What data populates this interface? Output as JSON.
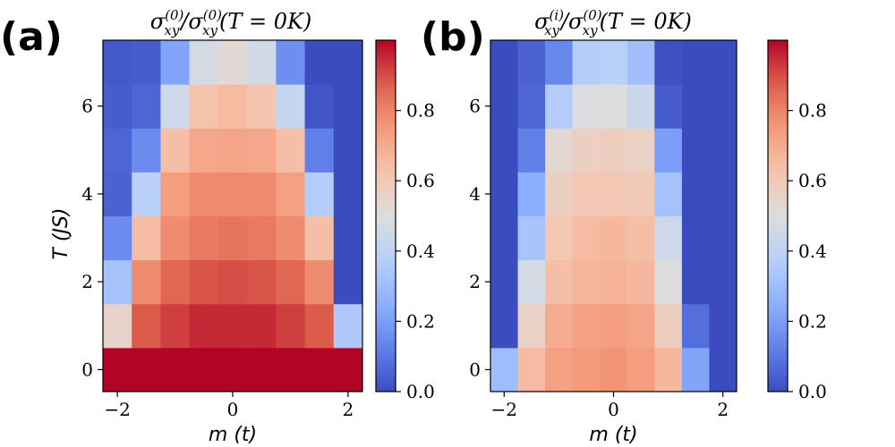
{
  "chart_data": [
    {
      "type": "heatmap",
      "panel_label": "(a)",
      "title": "σxy(0)/σxy(0)(T = 0K)",
      "title_parts": {
        "base_left": "σ",
        "sub_left": "xy",
        "sup_left": "(0)",
        "base_right": "/σ",
        "sub_right": "xy",
        "sup_right": "(0)",
        "tail": "(T = 0K)"
      },
      "xlabel": "m (t)",
      "ylabel": "T (JS)",
      "x_ticks": [
        "−2",
        "0",
        "2"
      ],
      "y_ticks": [
        "0",
        "2",
        "4",
        "6"
      ],
      "x_tick_values": [
        -2,
        0,
        2
      ],
      "y_tick_values": [
        0,
        2,
        4,
        6
      ],
      "xlim": [
        -2.25,
        2.25
      ],
      "ylim": [
        -0.5,
        7.5
      ],
      "colorbar_ticks": [
        "0.0",
        "0.2",
        "0.4",
        "0.6",
        "0.8"
      ],
      "colorbar_tick_values": [
        0,
        0.2,
        0.4,
        0.6,
        0.8
      ],
      "clim": [
        0,
        1
      ],
      "colormap": "coolwarm",
      "x_centers": [
        -2,
        -1.5,
        -1,
        -0.5,
        0,
        0.5,
        1,
        1.5,
        2
      ],
      "y_centers": [
        0,
        1,
        2,
        3,
        4,
        5,
        6,
        7
      ],
      "rows": [
        [
          1.0,
          1.0,
          1.0,
          1.0,
          1.0,
          1.0,
          1.0,
          1.0,
          1.0
        ],
        [
          0.55,
          0.88,
          0.92,
          0.95,
          0.95,
          0.95,
          0.92,
          0.88,
          0.35
        ],
        [
          0.32,
          0.78,
          0.86,
          0.89,
          0.9,
          0.89,
          0.86,
          0.78,
          0.0
        ],
        [
          0.15,
          0.65,
          0.78,
          0.82,
          0.83,
          0.82,
          0.78,
          0.64,
          0.0
        ],
        [
          0.05,
          0.38,
          0.74,
          0.78,
          0.78,
          0.78,
          0.73,
          0.36,
          0.0
        ],
        [
          0.06,
          0.15,
          0.64,
          0.71,
          0.72,
          0.71,
          0.64,
          0.12,
          0.0
        ],
        [
          0.04,
          0.06,
          0.45,
          0.63,
          0.65,
          0.62,
          0.42,
          0.02,
          0.0
        ],
        [
          0.03,
          0.04,
          0.22,
          0.47,
          0.52,
          0.46,
          0.16,
          0.0,
          0.0
        ]
      ]
    },
    {
      "type": "heatmap",
      "panel_label": "(b)",
      "title": "σxy(i)/σxy(0)(T = 0K)",
      "title_parts": {
        "base_left": "σ",
        "sub_left": "xy",
        "sup_left": "(i)",
        "base_right": "/σ",
        "sub_right": "xy",
        "sup_right": "(0)",
        "tail": "(T = 0K)"
      },
      "xlabel": "m (t)",
      "ylabel": "",
      "x_ticks": [
        "−2",
        "0",
        "2"
      ],
      "y_ticks": [
        "0",
        "2",
        "4",
        "6"
      ],
      "x_tick_values": [
        -2,
        0,
        2
      ],
      "y_tick_values": [
        0,
        2,
        4,
        6
      ],
      "xlim": [
        -2.25,
        2.25
      ],
      "ylim": [
        -0.5,
        7.5
      ],
      "colorbar_ticks": [
        "0.0",
        "0.2",
        "0.4",
        "0.6",
        "0.8"
      ],
      "colorbar_tick_values": [
        0,
        0.2,
        0.4,
        0.6,
        0.8
      ],
      "clim": [
        0,
        1
      ],
      "colormap": "coolwarm",
      "x_centers": [
        -2,
        -1.5,
        -1,
        -0.5,
        0,
        0.5,
        1,
        1.5,
        2
      ],
      "y_centers": [
        0,
        1,
        2,
        3,
        4,
        5,
        6,
        7
      ],
      "rows": [
        [
          0.3,
          0.65,
          0.73,
          0.75,
          0.76,
          0.74,
          0.66,
          0.22,
          0.0
        ],
        [
          0.0,
          0.56,
          0.7,
          0.73,
          0.74,
          0.72,
          0.58,
          0.08,
          0.0
        ],
        [
          0.0,
          0.47,
          0.64,
          0.67,
          0.68,
          0.66,
          0.5,
          0.0,
          0.0
        ],
        [
          0.0,
          0.33,
          0.61,
          0.65,
          0.66,
          0.64,
          0.45,
          0.0,
          0.0
        ],
        [
          0.0,
          0.25,
          0.57,
          0.61,
          0.61,
          0.6,
          0.32,
          0.0,
          0.0
        ],
        [
          0.0,
          0.12,
          0.53,
          0.57,
          0.58,
          0.56,
          0.2,
          0.0,
          0.0
        ],
        [
          0.0,
          0.06,
          0.36,
          0.49,
          0.5,
          0.44,
          0.04,
          0.0,
          0.0
        ],
        [
          0.0,
          0.05,
          0.14,
          0.36,
          0.38,
          0.31,
          0.01,
          0.0,
          0.0
        ]
      ]
    }
  ]
}
